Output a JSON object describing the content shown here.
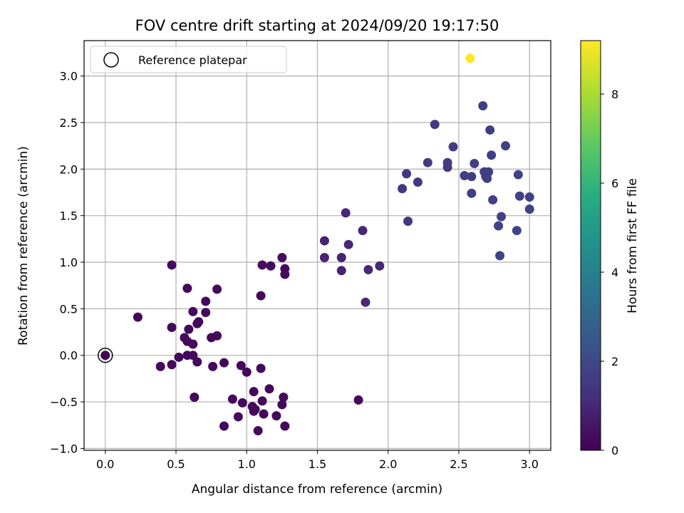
{
  "chart_data": {
    "type": "scatter",
    "title": "FOV centre drift starting at 2024/09/20 19:17:50",
    "xlabel": "Angular distance from reference (arcmin)",
    "ylabel": "Rotation from reference (arcmin)",
    "xlim": [
      -0.15,
      3.15
    ],
    "ylim": [
      -1.02,
      3.38
    ],
    "xticks": [
      0.0,
      0.5,
      1.0,
      1.5,
      2.0,
      2.5,
      3.0
    ],
    "xtick_labels": [
      "0.0",
      "0.5",
      "1.0",
      "1.5",
      "2.0",
      "2.5",
      "3.0"
    ],
    "yticks": [
      -1.0,
      -0.5,
      0.0,
      0.5,
      1.0,
      1.5,
      2.0,
      2.5,
      3.0
    ],
    "ytick_labels": [
      "−1.0",
      "−0.5",
      "0.0",
      "0.5",
      "1.0",
      "1.5",
      "2.0",
      "2.5",
      "3.0"
    ],
    "grid": true,
    "legend": {
      "position": "top-left",
      "entries": [
        "Reference platepar"
      ]
    },
    "colorbar": {
      "label": "Hours from first FF file",
      "range": [
        0,
        9.2
      ],
      "ticks": [
        0,
        2,
        4,
        6,
        8
      ],
      "tick_labels": [
        "0",
        "2",
        "4",
        "6",
        "8"
      ],
      "colormap": "viridis"
    },
    "reference_point": {
      "x": 0.0,
      "y": 0.0,
      "c": 0.0
    },
    "points": [
      {
        "x": 0.23,
        "y": 0.41,
        "c": 0.2
      },
      {
        "x": 0.47,
        "y": 0.97,
        "c": 0.2
      },
      {
        "x": 0.47,
        "y": 0.3,
        "c": 0.2
      },
      {
        "x": 0.47,
        "y": -0.1,
        "c": 0.2
      },
      {
        "x": 0.39,
        "y": -0.12,
        "c": 0.2
      },
      {
        "x": 0.52,
        "y": -0.02,
        "c": 0.2
      },
      {
        "x": 0.56,
        "y": 0.19,
        "c": 0.2
      },
      {
        "x": 0.58,
        "y": 0.72,
        "c": 0.2
      },
      {
        "x": 0.58,
        "y": 0.15,
        "c": 0.2
      },
      {
        "x": 0.58,
        "y": 0.0,
        "c": 0.2
      },
      {
        "x": 0.59,
        "y": 0.28,
        "c": 0.2
      },
      {
        "x": 0.62,
        "y": 0.47,
        "c": 0.2
      },
      {
        "x": 0.62,
        "y": 0.12,
        "c": 0.2
      },
      {
        "x": 0.62,
        "y": 0.0,
        "c": 0.2
      },
      {
        "x": 0.63,
        "y": -0.45,
        "c": 0.2
      },
      {
        "x": 0.65,
        "y": 0.34,
        "c": 0.2
      },
      {
        "x": 0.65,
        "y": -0.07,
        "c": 0.2
      },
      {
        "x": 0.66,
        "y": 0.36,
        "c": 0.2
      },
      {
        "x": 0.71,
        "y": 0.58,
        "c": 0.2
      },
      {
        "x": 0.71,
        "y": 0.46,
        "c": 0.2
      },
      {
        "x": 0.75,
        "y": 0.19,
        "c": 0.2
      },
      {
        "x": 0.76,
        "y": -0.12,
        "c": 0.2
      },
      {
        "x": 0.79,
        "y": 0.71,
        "c": 0.2
      },
      {
        "x": 0.79,
        "y": 0.21,
        "c": 0.2
      },
      {
        "x": 0.84,
        "y": -0.08,
        "c": 0.2
      },
      {
        "x": 0.84,
        "y": -0.76,
        "c": 0.2
      },
      {
        "x": 0.9,
        "y": -0.47,
        "c": 0.2
      },
      {
        "x": 0.94,
        "y": -0.66,
        "c": 0.2
      },
      {
        "x": 0.96,
        "y": -0.11,
        "c": 0.2
      },
      {
        "x": 0.97,
        "y": -0.51,
        "c": 0.2
      },
      {
        "x": 1.0,
        "y": -0.18,
        "c": 0.2
      },
      {
        "x": 1.04,
        "y": -0.55,
        "c": 0.2
      },
      {
        "x": 1.05,
        "y": -0.39,
        "c": 0.2
      },
      {
        "x": 1.05,
        "y": -0.6,
        "c": 0.2
      },
      {
        "x": 1.06,
        "y": -0.58,
        "c": 0.2
      },
      {
        "x": 1.08,
        "y": -0.81,
        "c": 0.2
      },
      {
        "x": 1.1,
        "y": 0.64,
        "c": 0.2
      },
      {
        "x": 1.1,
        "y": -0.14,
        "c": 0.2
      },
      {
        "x": 1.11,
        "y": 0.97,
        "c": 0.3
      },
      {
        "x": 1.11,
        "y": -0.49,
        "c": 0.2
      },
      {
        "x": 1.12,
        "y": -0.63,
        "c": 0.2
      },
      {
        "x": 1.16,
        "y": -0.36,
        "c": 0.2
      },
      {
        "x": 1.17,
        "y": 0.96,
        "c": 0.3
      },
      {
        "x": 1.21,
        "y": -0.65,
        "c": 0.2
      },
      {
        "x": 1.25,
        "y": 1.05,
        "c": 0.3
      },
      {
        "x": 1.25,
        "y": -0.53,
        "c": 0.2
      },
      {
        "x": 1.26,
        "y": -0.45,
        "c": 0.2
      },
      {
        "x": 1.27,
        "y": 0.93,
        "c": 0.3
      },
      {
        "x": 1.27,
        "y": 0.87,
        "c": 0.3
      },
      {
        "x": 1.27,
        "y": -0.76,
        "c": 0.2
      },
      {
        "x": 1.55,
        "y": 1.23,
        "c": 0.9
      },
      {
        "x": 1.55,
        "y": 1.05,
        "c": 0.9
      },
      {
        "x": 1.67,
        "y": 1.05,
        "c": 0.9
      },
      {
        "x": 1.67,
        "y": 0.91,
        "c": 0.9
      },
      {
        "x": 1.7,
        "y": 1.53,
        "c": 1.0
      },
      {
        "x": 1.72,
        "y": 1.19,
        "c": 1.0
      },
      {
        "x": 1.79,
        "y": -0.48,
        "c": 0.2
      },
      {
        "x": 1.82,
        "y": 1.34,
        "c": 1.0
      },
      {
        "x": 1.84,
        "y": 0.57,
        "c": 1.0
      },
      {
        "x": 1.86,
        "y": 0.92,
        "c": 1.0
      },
      {
        "x": 1.94,
        "y": 0.96,
        "c": 1.0
      },
      {
        "x": 2.1,
        "y": 1.79,
        "c": 1.5
      },
      {
        "x": 2.13,
        "y": 1.95,
        "c": 1.5
      },
      {
        "x": 2.14,
        "y": 1.44,
        "c": 1.5
      },
      {
        "x": 2.21,
        "y": 1.86,
        "c": 1.5
      },
      {
        "x": 2.28,
        "y": 2.07,
        "c": 1.6
      },
      {
        "x": 2.33,
        "y": 2.48,
        "c": 1.6
      },
      {
        "x": 2.42,
        "y": 2.07,
        "c": 1.6
      },
      {
        "x": 2.42,
        "y": 2.02,
        "c": 1.6
      },
      {
        "x": 2.46,
        "y": 2.24,
        "c": 1.6
      },
      {
        "x": 2.54,
        "y": 1.93,
        "c": 1.7
      },
      {
        "x": 2.59,
        "y": 1.92,
        "c": 1.7
      },
      {
        "x": 2.59,
        "y": 1.74,
        "c": 1.7
      },
      {
        "x": 2.61,
        "y": 2.06,
        "c": 1.7
      },
      {
        "x": 2.58,
        "y": 3.19,
        "c": 9.2
      },
      {
        "x": 2.67,
        "y": 2.68,
        "c": 1.7
      },
      {
        "x": 2.68,
        "y": 1.97,
        "c": 1.7
      },
      {
        "x": 2.69,
        "y": 1.92,
        "c": 1.7
      },
      {
        "x": 2.7,
        "y": 1.9,
        "c": 1.7
      },
      {
        "x": 2.71,
        "y": 1.97,
        "c": 1.7
      },
      {
        "x": 2.72,
        "y": 2.42,
        "c": 1.7
      },
      {
        "x": 2.73,
        "y": 2.15,
        "c": 1.7
      },
      {
        "x": 2.74,
        "y": 1.67,
        "c": 1.7
      },
      {
        "x": 2.78,
        "y": 1.39,
        "c": 1.8
      },
      {
        "x": 2.79,
        "y": 1.07,
        "c": 1.8
      },
      {
        "x": 2.8,
        "y": 1.49,
        "c": 1.8
      },
      {
        "x": 2.83,
        "y": 2.25,
        "c": 1.8
      },
      {
        "x": 2.91,
        "y": 1.34,
        "c": 1.8
      },
      {
        "x": 2.92,
        "y": 1.94,
        "c": 1.8
      },
      {
        "x": 2.93,
        "y": 1.71,
        "c": 1.8
      },
      {
        "x": 3.0,
        "y": 1.7,
        "c": 1.8
      },
      {
        "x": 3.0,
        "y": 1.57,
        "c": 1.8
      }
    ]
  }
}
